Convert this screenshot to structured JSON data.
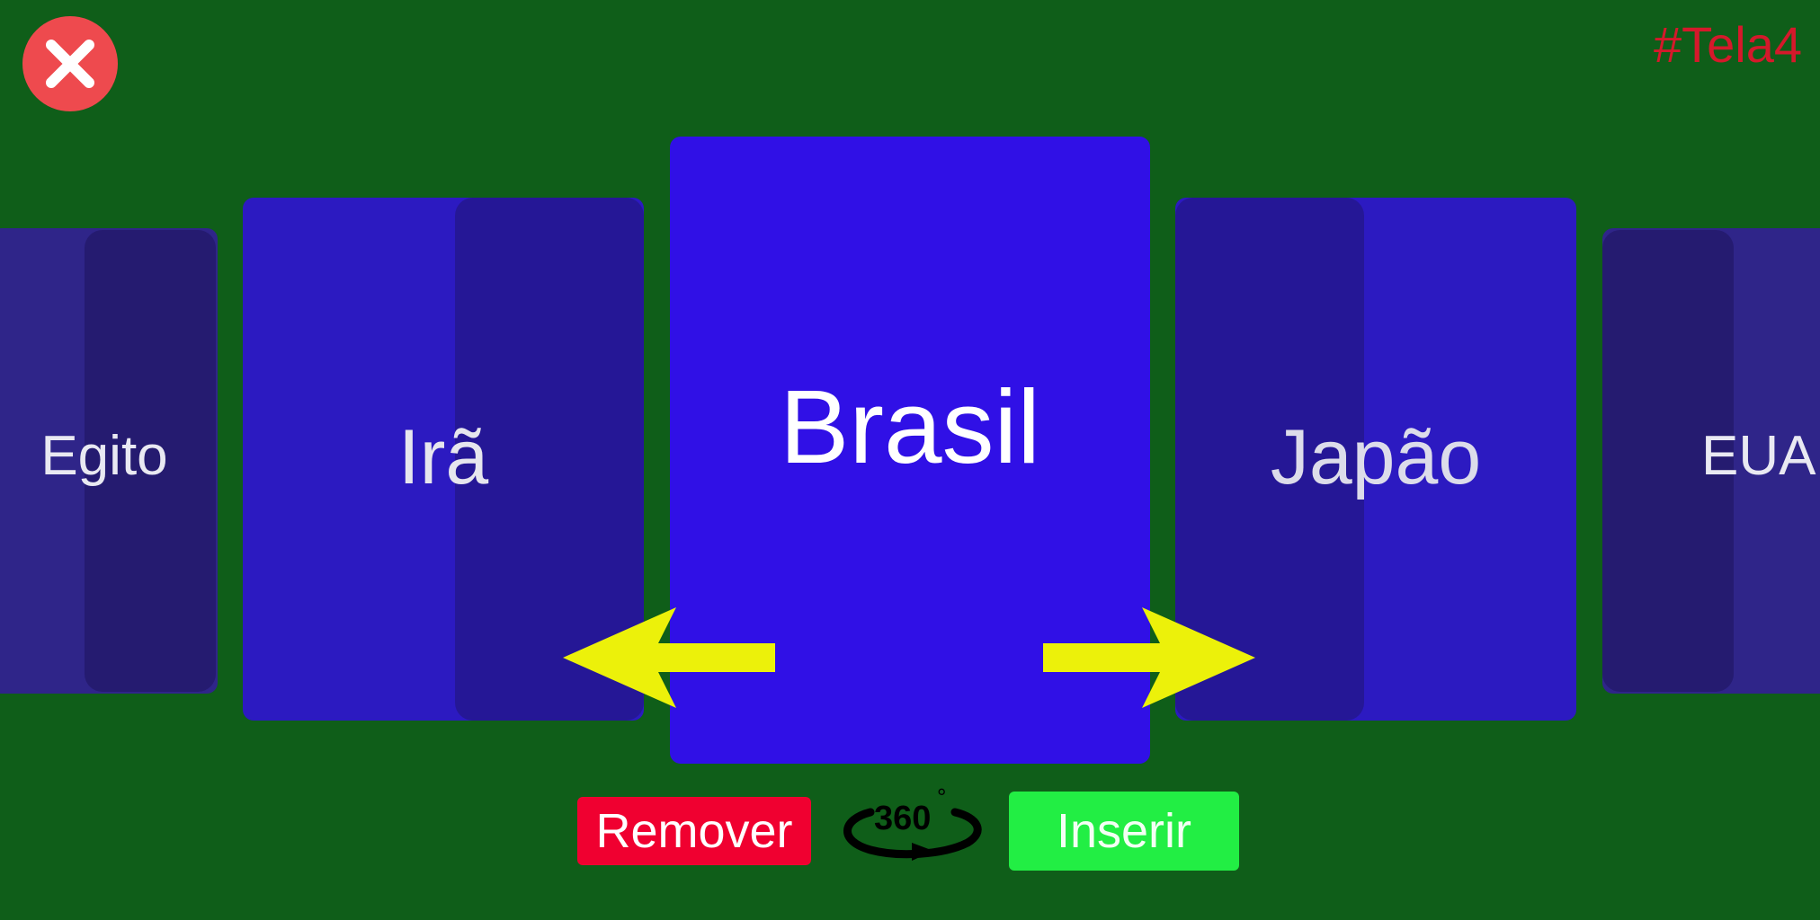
{
  "screen": {
    "tag": "#Tela4"
  },
  "carousel": {
    "cards": [
      {
        "label": "Egito"
      },
      {
        "label": "Irã"
      },
      {
        "label": "Brasil"
      },
      {
        "label": "Japão"
      },
      {
        "label": "EUA"
      }
    ],
    "selected": "Brasil"
  },
  "controls": {
    "remove_label": "Remover",
    "insert_label": "Inserir",
    "rotate_label": "360",
    "rotate_degree": "°"
  },
  "icons": {
    "close": "close-icon",
    "prev": "arrow-left-icon",
    "next": "arrow-right-icon",
    "rotate": "rotate-360-icon"
  },
  "colors": {
    "background": "#0f5e19",
    "selected_card": "#3010e6",
    "side_card": "#2c1ac1",
    "far_card": "#2f2589",
    "arrow": "#ecf10a",
    "remove": "#f00030",
    "insert": "#22ee44",
    "close": "#ee4a4e",
    "tag": "#d5192b"
  }
}
